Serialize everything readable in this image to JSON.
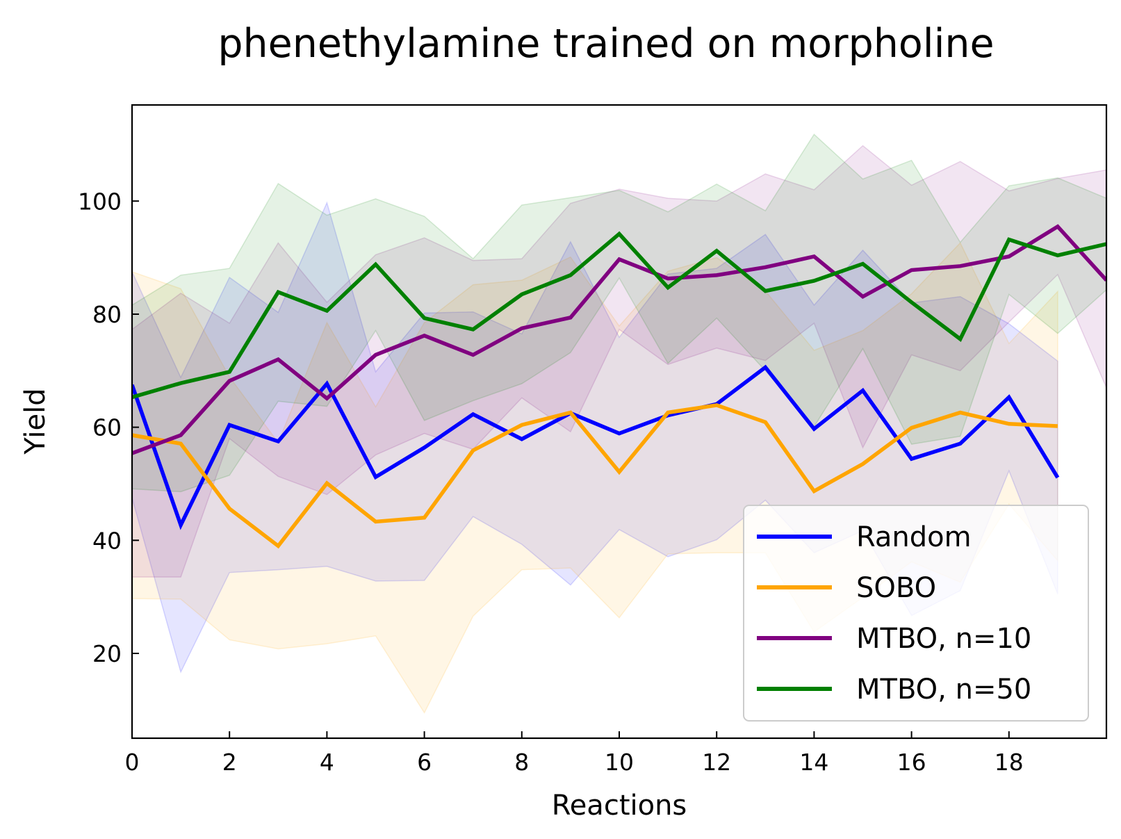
{
  "chart_data": {
    "type": "line",
    "title": "phenethylamine trained on morpholine",
    "xlabel": "Reactions",
    "ylabel": "Yield",
    "xlim": [
      0,
      20
    ],
    "ylim": [
      5,
      117
    ],
    "xticks": [
      0,
      2,
      4,
      6,
      8,
      10,
      12,
      14,
      16,
      18
    ],
    "yticks": [
      20,
      40,
      60,
      80,
      100
    ],
    "grid": false,
    "legend_position": "lower right",
    "series": [
      {
        "name": "Random",
        "color": "#0000ff",
        "x": [
          0,
          1,
          2,
          3,
          4,
          5,
          6,
          7,
          8,
          9,
          10,
          11,
          12,
          13,
          14,
          15,
          16,
          17,
          18,
          19
        ],
        "values": [
          67.5,
          42.7,
          60.4,
          57.5,
          67.7,
          51.2,
          56.4,
          62.3,
          57.9,
          62.5,
          58.9,
          62.1,
          64.1,
          70.6,
          59.7,
          66.5,
          54.4,
          57.1,
          65.3,
          51.1
        ],
        "upper": [
          87.5,
          68.8,
          86.5,
          80.3,
          99.7,
          69.8,
          80.2,
          80.4,
          76.5,
          92.8,
          75.9,
          87.1,
          88.1,
          94.1,
          81.6,
          91.3,
          82.0,
          83.1,
          78.3,
          71.7
        ],
        "lower": [
          47.5,
          16.7,
          34.3,
          34.8,
          35.4,
          32.8,
          32.9,
          44.2,
          39.3,
          32.1,
          41.9,
          37.1,
          40.1,
          47.1,
          37.8,
          41.7,
          26.7,
          31.1,
          52.3,
          30.5
        ]
      },
      {
        "name": "SOBO",
        "color": "#ffa500",
        "x": [
          0,
          1,
          2,
          3,
          4,
          5,
          6,
          7,
          8,
          9,
          10,
          11,
          12,
          13,
          14,
          15,
          16,
          17,
          18,
          19
        ],
        "values": [
          58.6,
          57.1,
          45.6,
          39.0,
          50.1,
          43.3,
          44.0,
          55.9,
          60.4,
          62.6,
          52.1,
          62.6,
          63.9,
          60.9,
          48.7,
          53.5,
          59.9,
          62.6,
          60.6,
          60.2
        ],
        "upper": [
          87.5,
          84.5,
          68.9,
          57.3,
          78.5,
          63.6,
          78.5,
          85.2,
          86.0,
          90.1,
          77.9,
          87.6,
          90.0,
          84.1,
          73.6,
          77.1,
          83.6,
          92.6,
          74.8,
          84.0
        ],
        "lower": [
          29.7,
          29.6,
          22.4,
          20.8,
          21.7,
          23.1,
          9.5,
          26.6,
          34.8,
          35.1,
          26.3,
          37.6,
          37.8,
          37.8,
          23.8,
          29.9,
          36.2,
          32.6,
          46.4,
          36.4
        ]
      },
      {
        "name": "MTBO, n=10",
        "color": "#800080",
        "x": [
          0,
          1,
          2,
          3,
          4,
          5,
          6,
          7,
          8,
          9,
          10,
          11,
          12,
          13,
          14,
          15,
          16,
          17,
          18,
          19,
          20
        ],
        "values": [
          55.4,
          58.6,
          68.2,
          72.0,
          65.1,
          72.8,
          76.2,
          72.8,
          77.5,
          79.4,
          89.7,
          86.3,
          86.9,
          88.3,
          90.2,
          83.1,
          87.8,
          88.5,
          90.2,
          95.5,
          86.0
        ],
        "upper": [
          77.3,
          83.7,
          78.4,
          92.6,
          82.1,
          90.5,
          93.5,
          89.5,
          89.8,
          99.6,
          102.1,
          100.5,
          100.0,
          104.8,
          102.0,
          109.8,
          102.8,
          107.0,
          101.8,
          104.0,
          105.5
        ],
        "lower": [
          33.5,
          33.5,
          58.0,
          51.3,
          48.1,
          55.1,
          58.9,
          56.1,
          65.2,
          59.2,
          77.3,
          71.1,
          74.0,
          71.8,
          78.4,
          56.4,
          72.8,
          70.0,
          78.6,
          87.0,
          67.0
        ]
      },
      {
        "name": "MTBO, n=50",
        "color": "#008000",
        "x": [
          0,
          1,
          2,
          3,
          4,
          5,
          6,
          7,
          8,
          9,
          10,
          11,
          12,
          13,
          14,
          15,
          16,
          17,
          18,
          19,
          20
        ],
        "values": [
          65.3,
          67.8,
          69.8,
          83.9,
          80.6,
          88.8,
          79.3,
          77.3,
          83.5,
          86.9,
          94.2,
          84.7,
          91.2,
          84.1,
          85.9,
          88.9,
          82.1,
          75.6,
          93.2,
          90.4,
          92.4
        ],
        "upper": [
          81.6,
          86.9,
          88.1,
          103.1,
          97.5,
          100.4,
          97.3,
          89.8,
          99.3,
          100.6,
          101.9,
          98.1,
          103.0,
          98.3,
          111.8,
          103.9,
          107.2,
          92.7,
          102.7,
          104.1,
          100.5
        ],
        "lower": [
          49.1,
          48.6,
          51.5,
          64.6,
          63.7,
          77.1,
          61.2,
          64.7,
          67.7,
          73.2,
          86.4,
          71.3,
          79.3,
          70.0,
          60.1,
          73.9,
          57.0,
          58.4,
          83.5,
          76.6,
          84.3
        ]
      }
    ]
  }
}
